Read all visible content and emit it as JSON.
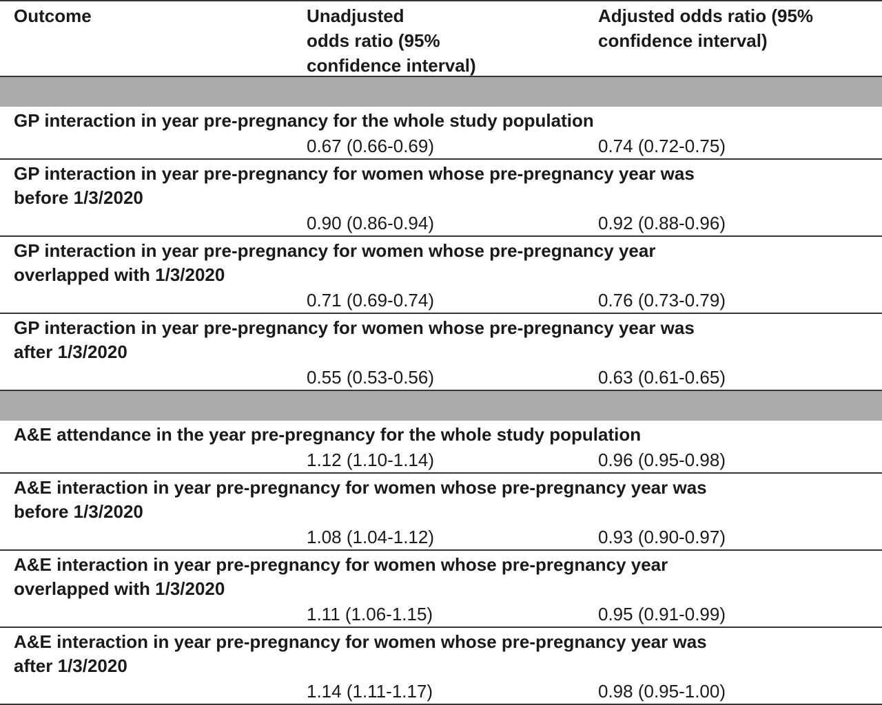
{
  "header": {
    "col1": "Outcome",
    "col2_lines": [
      "Unadjusted",
      "odds ratio (95%",
      "confidence interval)"
    ],
    "col3_lines": [
      "Adjusted odds ratio (95%",
      "confidence interval)"
    ]
  },
  "sections": [
    {
      "rows": [
        {
          "outcome_lines": [
            "GP interaction in year pre-pregnancy for the whole study population"
          ],
          "unadjusted": "0.67 (0.66-0.69)",
          "adjusted": "0.74 (0.72-0.75)"
        },
        {
          "outcome_lines": [
            "GP interaction in year pre-pregnancy for women whose pre-pregnancy year was",
            "before 1/3/2020"
          ],
          "unadjusted": "0.90 (0.86-0.94)",
          "adjusted": "0.92 (0.88-0.96)"
        },
        {
          "outcome_lines": [
            "GP interaction in year pre-pregnancy for women whose pre-pregnancy year",
            "overlapped with 1/3/2020"
          ],
          "unadjusted": "0.71 (0.69-0.74)",
          "adjusted": "0.76 (0.73-0.79)"
        },
        {
          "outcome_lines": [
            "GP interaction in year pre-pregnancy for women whose pre-pregnancy year was",
            "after 1/3/2020"
          ],
          "unadjusted": "0.55 (0.53-0.56)",
          "adjusted": "0.63 (0.61-0.65)"
        }
      ]
    },
    {
      "rows": [
        {
          "outcome_lines": [
            "A&E attendance in the year pre-pregnancy for the whole study population"
          ],
          "unadjusted": "1.12 (1.10-1.14)",
          "adjusted": "0.96 (0.95-0.98)"
        },
        {
          "outcome_lines": [
            "A&E interaction in year pre-pregnancy for women whose pre-pregnancy year was",
            "before 1/3/2020"
          ],
          "unadjusted": "1.08 (1.04-1.12)",
          "adjusted": "0.93 (0.90-0.97)"
        },
        {
          "outcome_lines": [
            "A&E interaction in year pre-pregnancy for women whose pre-pregnancy year",
            "overlapped with 1/3/2020"
          ],
          "unadjusted": "1.11 (1.06-1.15)",
          "adjusted": "0.95 (0.91-0.99)"
        },
        {
          "outcome_lines": [
            "A&E interaction in year pre-pregnancy for women whose pre-pregnancy year was",
            "after 1/3/2020"
          ],
          "unadjusted": "1.14 (1.11-1.17)",
          "adjusted": "0.98 (0.95-1.00)"
        }
      ]
    }
  ]
}
